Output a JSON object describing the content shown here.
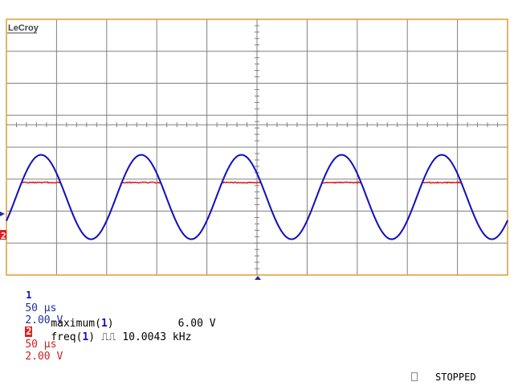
{
  "brand": "LeCroy",
  "grid": {
    "hdivs": 10,
    "vdivs": 8,
    "color": "#808080",
    "border": "#d8a030"
  },
  "traces": {
    "ch1": {
      "label": "1",
      "timebase": "50 µs",
      "volts": "2.00 V",
      "color": "#1010c0",
      "frequency_khz": 10.0043,
      "amplitude_div": 3
    },
    "ch2": {
      "label": "2",
      "timebase": "50 µs",
      "volts": "2.00 V",
      "color": "#e02020"
    }
  },
  "measurements": [
    {
      "name": "maximum",
      "channel": "1",
      "icon": "",
      "value": "6.00 V"
    },
    {
      "name": "freq",
      "channel": "1",
      "icon": "⎍⎍",
      "value": "10.0043 kHz"
    }
  ],
  "status": "STOPPED"
}
